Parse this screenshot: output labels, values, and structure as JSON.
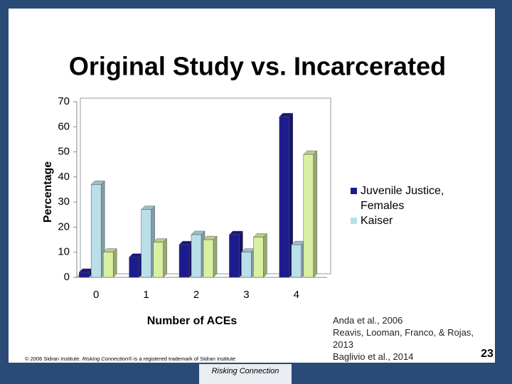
{
  "chart_data": {
    "type": "bar3d",
    "title": "Original Study vs. Incarcerated",
    "y_label": "Percentage",
    "x_label": "Number of ACEs",
    "categories": [
      "0",
      "1",
      "2",
      "3",
      "4"
    ],
    "series": [
      {
        "name": "Juvenile Justice, Females",
        "color": "#1c1c8f",
        "values": [
          2,
          8,
          13,
          17,
          64
        ]
      },
      {
        "name": "Kaiser",
        "color": "#b9dfe9",
        "values": [
          37,
          27,
          17,
          10,
          13
        ]
      },
      {
        "color": "#d8f0a2",
        "values": [
          10,
          14,
          15,
          16,
          49
        ]
      }
    ],
    "ylim": [
      0,
      70
    ],
    "yticks": [
      0,
      10,
      20,
      30,
      40,
      50,
      60,
      70
    ],
    "grid": false
  },
  "citations": [
    "Anda et al., 2006",
    "Reavis, Looman, Franco, & Rojas, 2013",
    "Baglivio et al., 2014"
  ],
  "footer": {
    "copyright_pre": "© 2006 Sidran Institute. ",
    "copyright_italic": "Risking Connection®",
    "copyright_post": " is a registered trademark of Sidran Institute",
    "page_number": "23",
    "logo": "Risking Connection"
  }
}
